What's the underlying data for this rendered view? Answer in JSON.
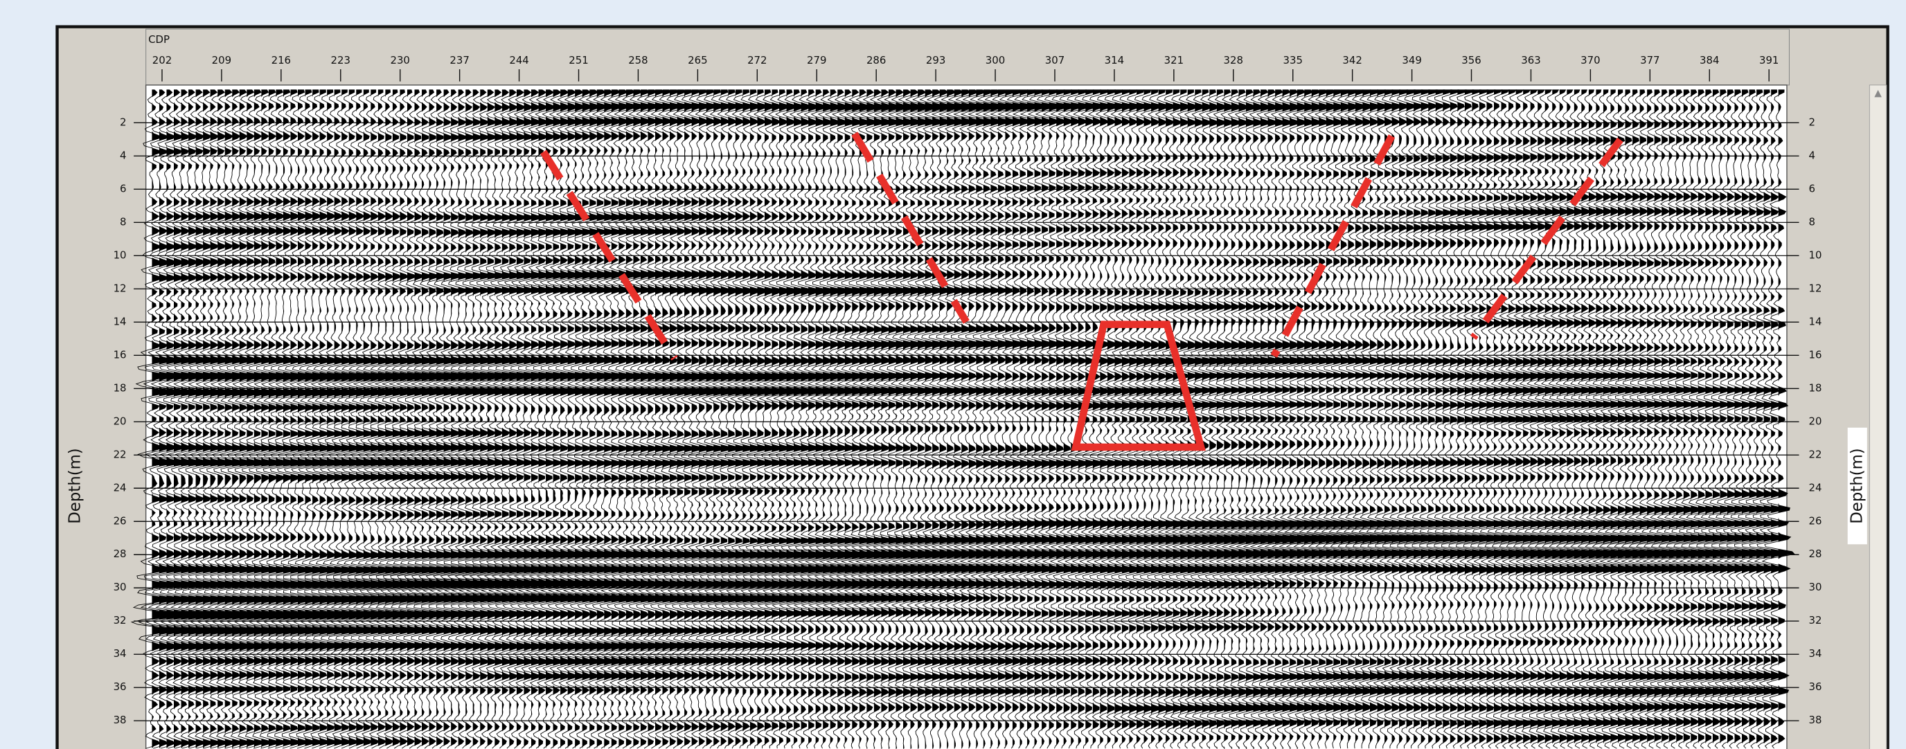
{
  "chart_data": {
    "type": "seismic",
    "x_label": "CDP",
    "y_label": "Depth(m)",
    "xlim": [
      200.1,
      393.1
    ],
    "ylim": [
      0,
      39.7
    ],
    "xticks": [
      202,
      209,
      216,
      223,
      230,
      237,
      244,
      251,
      258,
      265,
      272,
      279,
      286,
      293,
      300,
      307,
      314,
      321,
      328,
      335,
      342,
      349,
      356,
      363,
      370,
      377,
      384,
      391
    ],
    "yticks": [
      2,
      4,
      6,
      8,
      10,
      12,
      14,
      16,
      18,
      20,
      22,
      24,
      26,
      28,
      30,
      32,
      34,
      36,
      38
    ],
    "grid": true
  }
}
